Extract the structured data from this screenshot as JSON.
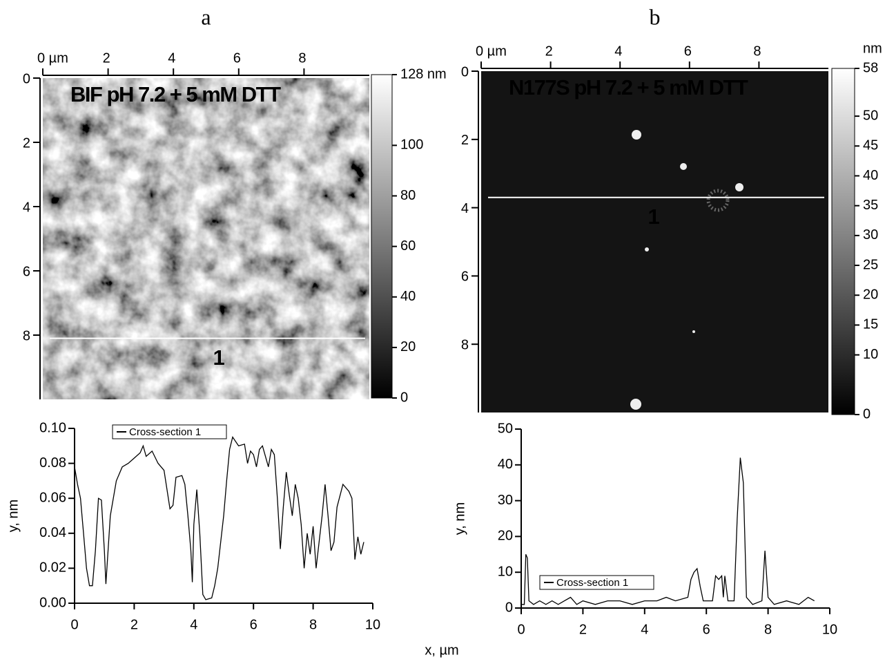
{
  "chart_data": [
    {
      "type": "image",
      "panel": "a",
      "title": "BIF pH 7.2 + 5 mM DTT",
      "title_color": "#111111",
      "xlim": [
        0,
        10
      ],
      "xticks": [
        {
          "value": 0,
          "label": "0 µm"
        },
        2,
        4,
        6,
        8
      ],
      "ylim": [
        0,
        10
      ],
      "yticks": [
        0,
        2,
        4,
        6,
        8
      ],
      "colorbar_lim": [
        0,
        128
      ],
      "colorbar_ticks": [
        0,
        20,
        40,
        60,
        80,
        100,
        {
          "value": 128,
          "label": "128 nm"
        }
      ],
      "cross_section": {
        "label": "1",
        "y": 8.1
      }
    },
    {
      "type": "image",
      "panel": "b",
      "title": "N177S pH 7.2 + 5 mM DTT",
      "title_color": "#ffffff",
      "xlim": [
        0,
        10
      ],
      "xticks": [
        {
          "value": 0,
          "label": "0 µm"
        },
        2,
        4,
        6,
        8
      ],
      "ylim": [
        0,
        10
      ],
      "yticks": [
        0,
        2,
        4,
        6,
        8
      ],
      "colorbar_lim": [
        0,
        58
      ],
      "colorbar_label": "nm",
      "colorbar_ticks": [
        0,
        10,
        15,
        20,
        25,
        30,
        35,
        40,
        45,
        50,
        58
      ],
      "cross_section": {
        "label": "1",
        "y": 3.7
      }
    },
    {
      "type": "line",
      "ylabel": "y, nm",
      "legend": "top",
      "xlim": [
        0,
        10
      ],
      "xticks": [
        0,
        2,
        4,
        6,
        8,
        10
      ],
      "ylim": [
        0,
        0.1
      ],
      "yticks": [
        {
          "value": 0,
          "label": "0.00"
        },
        0.02,
        0.04,
        0.06,
        0.08,
        {
          "value": 0.1,
          "label": "0.10"
        }
      ],
      "x": [
        0,
        0.1,
        0.2,
        0.3,
        0.4,
        0.5,
        0.6,
        0.7,
        0.8,
        0.9,
        1.0,
        1.05,
        1.2,
        1.4,
        1.6,
        1.8,
        2.0,
        2.2,
        2.3,
        2.4,
        2.6,
        2.8,
        3.0,
        3.2,
        3.3,
        3.4,
        3.6,
        3.7,
        3.8,
        3.9,
        3.95,
        4.0,
        4.1,
        4.2,
        4.3,
        4.4,
        4.6,
        4.7,
        4.8,
        5.0,
        5.1,
        5.2,
        5.3,
        5.5,
        5.7,
        5.8,
        5.9,
        6.0,
        6.1,
        6.2,
        6.3,
        6.5,
        6.6,
        6.7,
        6.8,
        6.9,
        7.0,
        7.1,
        7.2,
        7.3,
        7.4,
        7.5,
        7.6,
        7.7,
        7.8,
        7.9,
        8.0,
        8.1,
        8.3,
        8.4,
        8.5,
        8.6,
        8.7,
        8.8,
        9.0,
        9.2,
        9.3,
        9.4,
        9.5,
        9.6,
        9.7
      ],
      "series": [
        {
          "name": "Cross-section 1",
          "color": "#000000",
          "values": [
            0.078,
            0.068,
            0.06,
            0.04,
            0.02,
            0.01,
            0.01,
            0.03,
            0.06,
            0.059,
            0.03,
            0.011,
            0.05,
            0.07,
            0.078,
            0.08,
            0.083,
            0.086,
            0.09,
            0.084,
            0.087,
            0.08,
            0.076,
            0.054,
            0.056,
            0.072,
            0.073,
            0.068,
            0.05,
            0.03,
            0.012,
            0.045,
            0.065,
            0.04,
            0.005,
            0.002,
            0.003,
            0.01,
            0.02,
            0.05,
            0.07,
            0.088,
            0.095,
            0.09,
            0.091,
            0.08,
            0.087,
            0.085,
            0.078,
            0.088,
            0.09,
            0.078,
            0.088,
            0.085,
            0.06,
            0.031,
            0.055,
            0.075,
            0.062,
            0.05,
            0.068,
            0.06,
            0.045,
            0.02,
            0.04,
            0.028,
            0.044,
            0.02,
            0.05,
            0.068,
            0.05,
            0.03,
            0.035,
            0.055,
            0.068,
            0.064,
            0.06,
            0.025,
            0.038,
            0.028,
            0.035
          ]
        }
      ]
    },
    {
      "type": "line",
      "ylabel": "y, nm",
      "legend": "bottom-left",
      "xlim": [
        0,
        10
      ],
      "xticks": [
        0,
        2,
        4,
        6,
        8,
        10
      ],
      "ylim": [
        0,
        50
      ],
      "yticks": [
        0,
        10,
        20,
        30,
        40,
        50
      ],
      "x": [
        0,
        0.1,
        0.15,
        0.2,
        0.25,
        0.4,
        0.6,
        0.8,
        1.0,
        1.2,
        1.4,
        1.6,
        1.8,
        2.0,
        2.4,
        2.8,
        3.2,
        3.6,
        4.0,
        4.4,
        4.7,
        5.0,
        5.4,
        5.5,
        5.6,
        5.7,
        5.8,
        5.9,
        6.2,
        6.3,
        6.4,
        6.5,
        6.55,
        6.6,
        6.7,
        6.9,
        7.0,
        7.1,
        7.2,
        7.3,
        7.5,
        7.8,
        7.9,
        8.0,
        8.2,
        8.6,
        9.0,
        9.3,
        9.5
      ],
      "series": [
        {
          "name": "Cross-section 1",
          "color": "#000000",
          "values": [
            1,
            1,
            15,
            14,
            2,
            1,
            2,
            1,
            2,
            1,
            2,
            3,
            1,
            2,
            1,
            2,
            2,
            1,
            2,
            2,
            3,
            2,
            3,
            8,
            10,
            11,
            6,
            2,
            2,
            9,
            8,
            9,
            3,
            9,
            2,
            2,
            25,
            42,
            35,
            3,
            1,
            2,
            16,
            3,
            1,
            2,
            1,
            3,
            2
          ]
        }
      ]
    }
  ],
  "shared_xlabel": "x, µm"
}
